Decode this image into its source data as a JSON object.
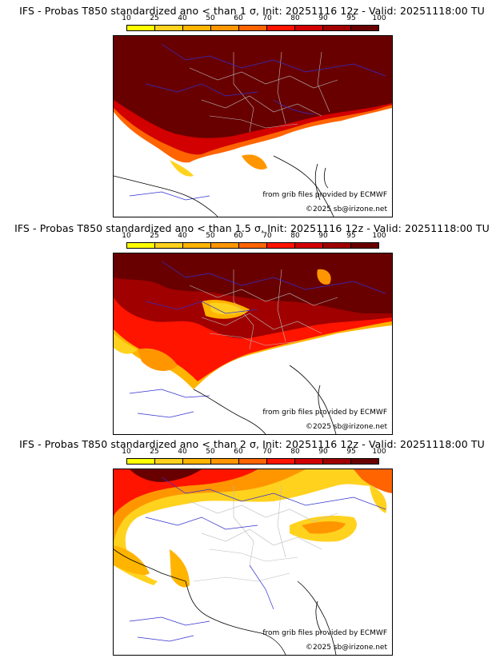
{
  "colorbar": {
    "ticks": [
      "10",
      "25",
      "40",
      "50",
      "60",
      "70",
      "80",
      "90",
      "95",
      "100"
    ],
    "colors": [
      "#ffff00",
      "#ffd21e",
      "#ffb400",
      "#ff9600",
      "#ff6400",
      "#ff1400",
      "#d20000",
      "#a00000",
      "#690000"
    ]
  },
  "panels": [
    {
      "title": "IFS - Probas T850  standardized ano < than 1 σ, Init: 20251116 12z - Valid: 20251118:00 TU",
      "threshold_sigma": 1,
      "credit_line1": "from grib files provided by ECMWF",
      "credit_line2": "©2025 sb@irizone.net"
    },
    {
      "title": "IFS - Probas T850  standardized ano < than 1.5 σ, Init: 20251116 12z - Valid: 20251118:00 TU",
      "threshold_sigma": 1.5,
      "credit_line1": "from grib files provided by ECMWF",
      "credit_line2": "©2025 sb@irizone.net"
    },
    {
      "title": "IFS - Probas T850  standardized ano < than 2 σ, Init: 20251116 12z - Valid: 20251118:00 TU",
      "threshold_sigma": 2,
      "credit_line1": "from grib files provided by ECMWF",
      "credit_line2": "©2025 sb@irizone.net"
    }
  ]
}
